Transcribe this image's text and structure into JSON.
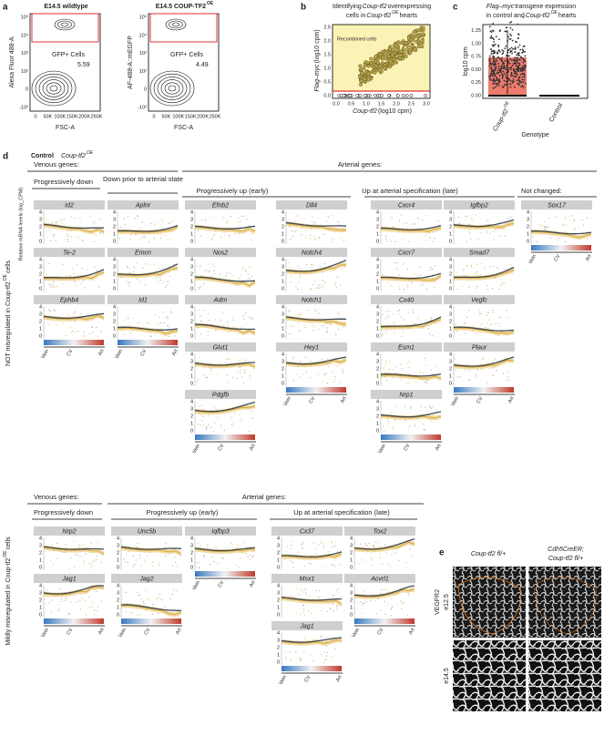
{
  "panel_a": {
    "label": "a",
    "plots": [
      {
        "title": "E14.5 wildtype",
        "title_sup": "",
        "y_label": "Alexa Fluor 488-A",
        "x_label": "FSC-A",
        "gate_label": "GFP+ Cells",
        "gate_value": "5.59"
      },
      {
        "title": "E14.5 COUP-TF2",
        "title_sup": "OE",
        "y_label": "AF-488-A::mEGFP",
        "x_label": "FSC-A",
        "gate_label": "GFP+ Cells",
        "gate_value": "4.49"
      }
    ],
    "x_ticks": [
      "0",
      "50K",
      "100K",
      "150K",
      "200K",
      "250K"
    ],
    "y_ticks": [
      "-10³",
      "0",
      "10²",
      "10³",
      "10⁴",
      "10⁵"
    ]
  },
  "panel_b": {
    "label": "b",
    "title_line1": "Identifying",
    "title_gene": "Coup-tf2",
    "title_rest": "overexpressing",
    "title_line2": "cells in",
    "title_gene2": "Coup-tf2",
    "title_sup": "OE",
    "title_end": "hearts",
    "annotation": "Recombined cells",
    "y_label_gene": "Flag–myc",
    "y_label_unit": "(log10 cpm)",
    "x_label_gene": "Coup-tf2",
    "x_label_unit": "(log10 cpm)",
    "x_ticks": [
      "0.0",
      "0.5",
      "1.0",
      "1.5",
      "2.0",
      "2.5",
      "3.0"
    ],
    "y_ticks": [
      "0.0",
      "0.5",
      "1.0",
      "1.5",
      "2.0",
      "2.5"
    ]
  },
  "panel_c": {
    "label": "c",
    "title_gene": "Flag–myc",
    "title_rest": "transgene expression",
    "title_line2": "in control and",
    "title_gene2": "Coup-tf2",
    "title_sup": "OE",
    "title_end": "hearts",
    "y_label": "log10 cpm",
    "y_ticks": [
      "0.00",
      "0.25",
      "0.50",
      "0.75",
      "1.00",
      "1.25"
    ],
    "categories": [
      "Coup-tf2",
      "Control"
    ],
    "category_sup": "OE",
    "x_label": "Genotype"
  },
  "panel_d": {
    "label": "d",
    "legend": [
      "Control",
      "Coup-tf2"
    ],
    "legend_sup": "OE",
    "y_label": "Relative mRNA levels (log_CPM)",
    "y_ticks": [
      "0",
      "1",
      "2",
      "3",
      "4"
    ],
    "axis_labels": [
      "Vein",
      "CV",
      "Art"
    ],
    "top": {
      "side_label": "NOT misregulated in Coup-tf2",
      "side_sup": "OE",
      "side_end": "cells",
      "groups": [
        "Venous genes:",
        "Arterial genes:",
        "Not changed:"
      ],
      "subgroups": [
        "Progressively down",
        "Down prior to arterial state",
        "Progressively up (early)",
        "Up at arterial specification (late)"
      ],
      "columns": [
        [
          "Id2",
          "Te-2",
          "Ephb4"
        ],
        [
          "Aplnr",
          "Emcn",
          "Id1"
        ],
        [
          "Efnb2",
          "Nos2",
          "Adm",
          "Glut1",
          "Pdgfb"
        ],
        [
          "Dll4",
          "Notch4",
          "Notch1",
          "Hey1"
        ],
        [
          "Cxcr4",
          "Cxcr7",
          "Cx40",
          "Esm1",
          "Nrp1"
        ],
        [
          "Igfbp2",
          "Smad7",
          "Vegfc",
          "Plaur"
        ],
        [
          "Sox17"
        ]
      ]
    },
    "bottom": {
      "side_label": "Mildly misregulated in Coup-tf2",
      "side_sup": "OE",
      "side_end": "cells",
      "groups": [
        "Venous genes:",
        "Arterial genes:"
      ],
      "subgroups": [
        "Progressively down",
        "Progressively up (early)",
        "Up at arterial specification (late)"
      ],
      "columns": [
        [
          "Nrp2",
          "Jag1"
        ],
        [
          "Unc5b",
          "Jag2"
        ],
        [
          "Iqfbp3"
        ],
        [
          "Cx37",
          "Msx1",
          "Jag1"
        ],
        [
          "Tox2",
          "Acvrl1"
        ]
      ]
    }
  },
  "panel_e": {
    "label": "e",
    "col1": "Coup-tf2 fl/+",
    "col2_line1": "Cdh5CreER;",
    "col2_line2": "Coup-tf2 fl/+",
    "rows": [
      "e12.5",
      "e14.5"
    ],
    "stain": "VEGFR2"
  }
}
